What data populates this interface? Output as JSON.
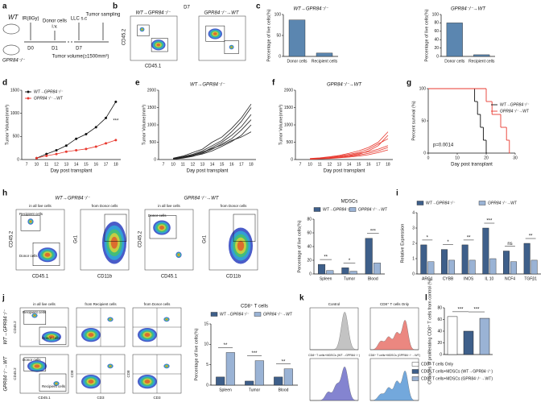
{
  "panel_labels": [
    "a",
    "b",
    "c",
    "d",
    "e",
    "f",
    "g",
    "h",
    "i",
    "j",
    "k",
    "l"
  ],
  "schematic": {
    "donor": "WT",
    "recipient": "GPR84⁻/⁻",
    "steps": [
      "IR(8Gy)",
      "Donor cells",
      "i.v.",
      "LLC s.c",
      "Tumor sampling"
    ],
    "days": [
      "D0",
      "D1",
      "D7"
    ],
    "endpoint": "Tumor volume(≥1500mm³)"
  },
  "flow_b": {
    "title": "D7",
    "plots": [
      "WT→GPR84⁻/⁻",
      "GPR84⁻/⁻→WT"
    ],
    "x_label": "CD45.1",
    "y_label": "CD45.2"
  },
  "flow_h": {
    "groups": [
      "WT→GPR84⁻/⁻",
      "GPR84⁻/⁻→WT"
    ],
    "gates": [
      "in all live cells",
      "from Donor cells"
    ],
    "axes": [
      "CD45.2",
      "CD45.1",
      "Gr1",
      "CD11b"
    ],
    "populations": [
      "Recipient cells",
      "Donor cells"
    ]
  },
  "flow_j": {
    "rows": [
      "WT→GPR84⁻/⁻",
      "GPR84⁻/⁻→WT"
    ],
    "gates": [
      "in all live cells",
      "from Recipient cells",
      "from Donor cells"
    ],
    "axes": [
      "CD45.2",
      "CD45.1",
      "CD8",
      "CD3"
    ],
    "populations": [
      "Recipient cells",
      "Donor cells"
    ]
  },
  "histograms_k": {
    "titles": [
      "Control",
      "CD8⁺ T cells Only",
      "CD8⁺ T cells+MDSCs (WT→GPR84⁻/⁻)",
      "CD8⁺ T cells+MDSCs (GPR84⁻/⁻→WT)"
    ]
  },
  "chart_data": [
    {
      "type": "bar",
      "title": "WT→GPR84⁻/⁻",
      "y_label": "Percentage of live cells(%)",
      "categories": [
        "Donor cells",
        "Recipient cells"
      ],
      "values": [
        87,
        8
      ],
      "color": "#5b86b0",
      "ylim": [
        0,
        100
      ],
      "yticks": [
        0,
        50,
        100
      ]
    },
    {
      "type": "bar",
      "title": "GPR84⁻/⁻→WT",
      "y_label": "Percentage of live cells(%)",
      "categories": [
        "Donor cells",
        "Recipient cells"
      ],
      "values": [
        80,
        4
      ],
      "color": "#5b86b0",
      "ylim": [
        0,
        100
      ],
      "yticks": [
        0,
        20,
        40,
        60,
        80,
        100
      ]
    },
    {
      "type": "line",
      "y_label": "Tumor Volume(mm³)",
      "x_label": "Day post transplant",
      "categories": [
        "7",
        "10",
        "11",
        "12",
        "13",
        "14",
        "15",
        "16",
        "17",
        "18"
      ],
      "markers": true,
      "legend": "upper left",
      "series": [
        {
          "name": "WT→GPR84⁻/⁻",
          "color": "#111111",
          "values": [
            null,
            30,
            120,
            200,
            300,
            450,
            550,
            700,
            900,
            1250
          ]
        },
        {
          "name": "GPR84⁻/⁻→WT",
          "color": "#e8392f",
          "values": [
            null,
            30,
            80,
            120,
            170,
            200,
            230,
            280,
            350,
            420
          ]
        }
      ],
      "significance": [
        "***"
      ],
      "ylim": [
        0,
        1500
      ],
      "yticks": [
        0,
        500,
        1000,
        1500
      ]
    },
    {
      "type": "line",
      "title": "WT→GPR84⁻/⁻",
      "y_label": "Tumor Volume(mm³)",
      "x_label": "Day post transplant",
      "categories": [
        "7",
        "10",
        "11",
        "12",
        "13",
        "14",
        "15",
        "16",
        "17",
        "18"
      ],
      "series": [
        {
          "color": "#222222",
          "values": [
            null,
            20,
            60,
            120,
            200,
            350,
            500,
            700,
            950,
            1300
          ]
        },
        {
          "color": "#222222",
          "values": [
            null,
            30,
            80,
            150,
            250,
            400,
            550,
            800,
            1100,
            1500
          ]
        },
        {
          "color": "#222222",
          "values": [
            null,
            10,
            40,
            90,
            180,
            300,
            450,
            600,
            850,
            1150
          ]
        },
        {
          "color": "#222222",
          "values": [
            null,
            20,
            50,
            100,
            160,
            250,
            380,
            520,
            700,
            1000
          ]
        },
        {
          "color": "#222222",
          "values": [
            null,
            40,
            100,
            200,
            300,
            500,
            650,
            900,
            1200,
            1600
          ]
        },
        {
          "color": "#222222",
          "values": [
            null,
            30,
            70,
            130,
            220,
            320,
            420,
            550,
            650,
            800
          ]
        }
      ],
      "ylim": [
        0,
        2000
      ],
      "yticks": [
        0,
        500,
        1000,
        1500,
        2000
      ]
    },
    {
      "type": "line",
      "title": "GPR84⁻/⁻→WT",
      "y_label": "Tumor Volume(mm³)",
      "x_label": "Day post transplant",
      "categories": [
        "7",
        "10",
        "11",
        "12",
        "13",
        "14",
        "15",
        "16",
        "17",
        "18"
      ],
      "series": [
        {
          "color": "#e8392f",
          "values": [
            null,
            10,
            20,
            40,
            60,
            100,
            150,
            250,
            400,
            700
          ]
        },
        {
          "color": "#e8392f",
          "values": [
            null,
            20,
            40,
            60,
            100,
            150,
            200,
            300,
            450,
            600
          ]
        },
        {
          "color": "#e8392f",
          "values": [
            null,
            10,
            30,
            50,
            80,
            120,
            180,
            220,
            300,
            400
          ]
        },
        {
          "color": "#e8392f",
          "values": [
            null,
            20,
            30,
            40,
            60,
            90,
            130,
            180,
            250,
            350
          ]
        },
        {
          "color": "#e8392f",
          "values": [
            null,
            30,
            50,
            80,
            120,
            180,
            250,
            350,
            500,
            800
          ]
        },
        {
          "color": "#e8392f",
          "values": [
            null,
            10,
            20,
            30,
            50,
            70,
            100,
            140,
            200,
            280
          ]
        }
      ],
      "ylim": [
        0,
        2000
      ],
      "yticks": [
        0,
        500,
        1000,
        1500,
        2000
      ]
    },
    {
      "type": "step",
      "y_label": "Percent survival (%)",
      "x_label": "Day post transplant",
      "annotation": "p=0.0014",
      "legend": "upper right",
      "series": [
        {
          "name": "WT→GPR84⁻/⁻",
          "color": "#111111",
          "x": [
            0,
            16,
            17,
            18,
            19,
            20
          ],
          "values": [
            100,
            80,
            60,
            40,
            20,
            0
          ]
        },
        {
          "name": "GPR84⁻/⁻→WT",
          "color": "#e8392f",
          "x": [
            0,
            20,
            22,
            25,
            27,
            28
          ],
          "values": [
            100,
            80,
            60,
            40,
            20,
            0
          ]
        }
      ],
      "xlim": [
        0,
        30
      ],
      "xticks": [
        0,
        10,
        20,
        30
      ],
      "ylim": [
        0,
        100
      ],
      "yticks": [
        0,
        50,
        100
      ]
    },
    {
      "type": "bar",
      "title": "MDSCs",
      "y_label": "Percentage of live cells(%)",
      "categories": [
        "Spleen",
        "Tumor",
        "Blood"
      ],
      "legend": "top",
      "series": [
        {
          "name": "WT→GPR84⁻/⁻",
          "color": "#3e5f8a",
          "values": [
            14,
            9,
            52
          ]
        },
        {
          "name": "GPR84⁻/⁻→WT",
          "color": "#9ab3d5",
          "values": [
            5,
            4,
            16
          ]
        }
      ],
      "significance": [
        "**",
        "*",
        "***"
      ],
      "ylim": [
        0,
        80
      ],
      "yticks": [
        0,
        20,
        40,
        60,
        80
      ]
    },
    {
      "type": "bar",
      "y_label": "Relative Expression",
      "categories": [
        "ARG1",
        "CYBB",
        "INOS",
        "IL 10",
        "NCF4",
        "TGFβ1"
      ],
      "legend": "top",
      "series": [
        {
          "name": "WT→GPR84⁻/⁻",
          "color": "#3e5f8a",
          "values": [
            1.9,
            1.6,
            1.9,
            3.0,
            1.5,
            2.0
          ]
        },
        {
          "name": "GPR84⁻/⁻→WT",
          "color": "#9ab3d5",
          "values": [
            0.8,
            0.9,
            0.9,
            1.0,
            0.8,
            0.9
          ]
        }
      ],
      "significance": [
        "*",
        "*",
        "**",
        "***",
        "ns",
        "**"
      ],
      "ylim": [
        0,
        4
      ],
      "yticks": [
        0,
        1,
        2,
        3,
        4
      ]
    },
    {
      "type": "bar",
      "title": "CD8⁺ T cells",
      "y_label": "Percentage of live cells(%)",
      "categories": [
        "Spleen",
        "Tumor",
        "Blood"
      ],
      "legend": "top",
      "series": [
        {
          "name": "WT→GPR84⁻/⁻",
          "color": "#3e5f8a",
          "values": [
            2,
            1,
            2
          ]
        },
        {
          "name": "GPR84⁻/⁻→WT",
          "color": "#9ab3d5",
          "values": [
            8,
            6,
            4
          ]
        }
      ],
      "significance": [
        "**",
        "***",
        "**"
      ],
      "ylim": [
        0,
        15
      ],
      "yticks": [
        0,
        5,
        10,
        15
      ]
    },
    {
      "type": "bar",
      "y_label": "Changes of proliferating CD8⁺ T cells from control (%)",
      "legend": "bottom",
      "series": [
        {
          "name": "CD8⁺ T cells Only",
          "color": "#ffffff",
          "values": [
            65
          ]
        },
        {
          "name": "CD8⁺ T cells+MDSCs (WT→GPR84⁻/⁻)",
          "color": "#3e5f8a",
          "values": [
            40
          ]
        },
        {
          "name": "CD8⁺ T cells+MDSCs (GPR84⁻/⁻→WT)",
          "color": "#9ab3d5",
          "values": [
            62
          ]
        }
      ],
      "significance": [
        "***",
        "***"
      ],
      "ylim": [
        0,
        80
      ],
      "yticks": [
        0,
        20,
        40,
        60,
        80
      ]
    }
  ]
}
